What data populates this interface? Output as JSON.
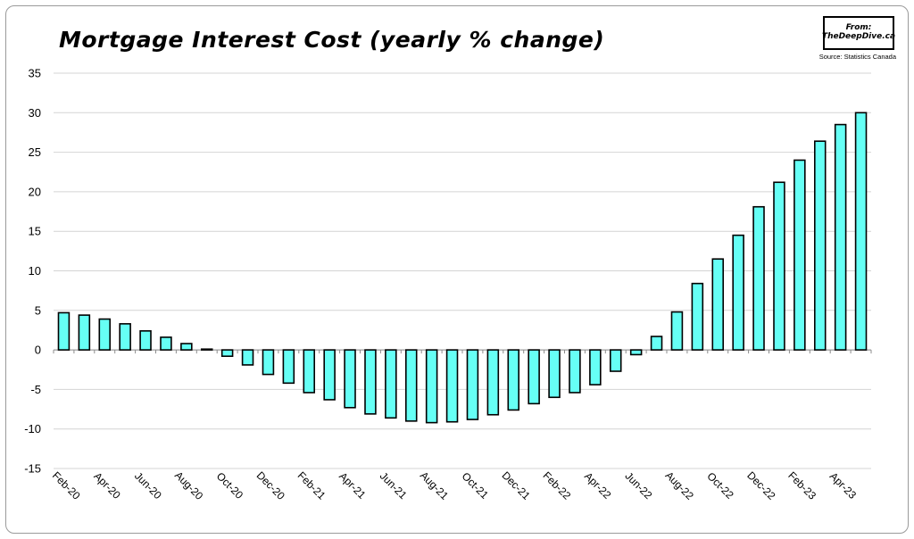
{
  "chart_data": {
    "type": "bar",
    "title": "Mortgage Interest Cost (yearly % change)",
    "logo": {
      "line1": "From:",
      "line2": "TheDeepDive.ca"
    },
    "source": "Source: Statistics Canada",
    "xlabel": "",
    "ylabel": "",
    "ylim": [
      -15,
      35
    ],
    "yticks": [
      35,
      30,
      25,
      20,
      15,
      10,
      5,
      0,
      -5,
      -10,
      -15
    ],
    "grid": true,
    "legend": "none",
    "bar_color": "#66FFF5",
    "bar_edge": "#000000",
    "categories": [
      "Feb-20",
      "Mar-20",
      "Apr-20",
      "May-20",
      "Jun-20",
      "Jul-20",
      "Aug-20",
      "Sep-20",
      "Oct-20",
      "Nov-20",
      "Dec-20",
      "Jan-21",
      "Feb-21",
      "Mar-21",
      "Apr-21",
      "May-21",
      "Jun-21",
      "Jul-21",
      "Aug-21",
      "Sep-21",
      "Oct-21",
      "Nov-21",
      "Dec-21",
      "Jan-22",
      "Feb-22",
      "Mar-22",
      "Apr-22",
      "May-22",
      "Jun-22",
      "Jul-22",
      "Aug-22",
      "Sep-22",
      "Oct-22",
      "Nov-22",
      "Dec-22",
      "Jan-23",
      "Feb-23",
      "Mar-23",
      "Apr-23",
      "May-23"
    ],
    "tick_labels": [
      "Feb-20",
      "Apr-20",
      "Jun-20",
      "Aug-20",
      "Oct-20",
      "Dec-20",
      "Feb-21",
      "Apr-21",
      "Jun-21",
      "Aug-21",
      "Oct-21",
      "Dec-21",
      "Feb-22",
      "Apr-22",
      "Jun-22",
      "Aug-22",
      "Oct-22",
      "Dec-22",
      "Feb-23",
      "Apr-23"
    ],
    "values": [
      4.7,
      4.4,
      3.9,
      3.3,
      2.4,
      1.6,
      0.8,
      0.1,
      -0.8,
      -1.9,
      -3.1,
      -4.2,
      -5.4,
      -6.3,
      -7.3,
      -8.1,
      -8.6,
      -9.0,
      -9.2,
      -9.1,
      -8.8,
      -8.2,
      -7.6,
      -6.8,
      -6.0,
      -5.4,
      -4.4,
      -2.7,
      -0.6,
      1.7,
      4.8,
      8.4,
      11.5,
      14.5,
      18.1,
      21.2,
      24.0,
      26.4,
      28.5,
      30.0
    ]
  }
}
